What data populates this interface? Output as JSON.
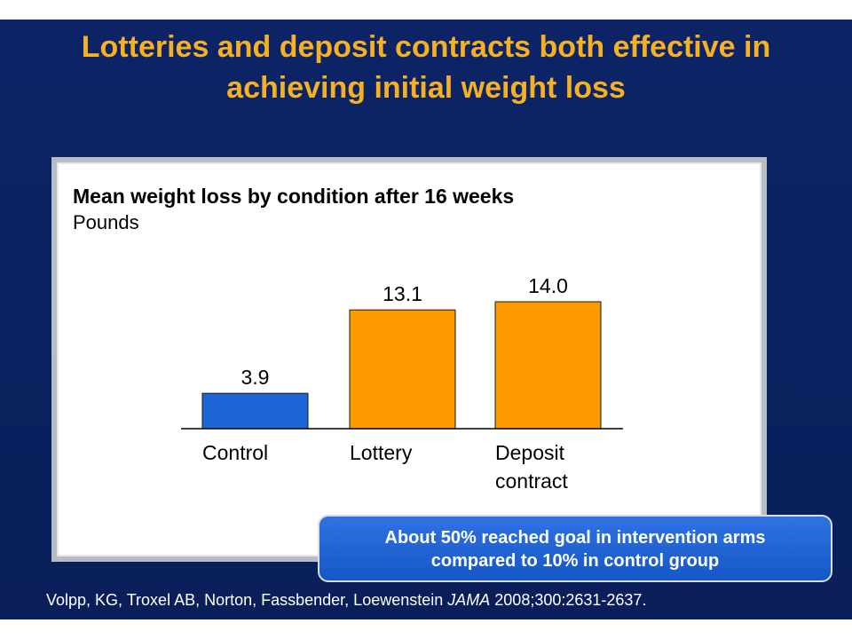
{
  "slide": {
    "title_line1": "Lotteries and deposit contracts both effective in",
    "title_line2": "achieving initial weight loss",
    "callout_line1": "About 50% reached goal in intervention arms",
    "callout_line2": "compared to 10% in control group",
    "citation_authors": "Volpp, KG, Troxel AB, Norton, Fassbender, Loewenstein ",
    "citation_journal": "JAMA",
    "citation_ref": " 2008;300:2631-2637.",
    "colors": {
      "background": "#0a1f5c",
      "title": "#f6b023",
      "callout": "#1e62d6"
    }
  },
  "chart_data": {
    "type": "bar",
    "title": "Mean weight loss by condition after 16 weeks",
    "subtitle": "Pounds",
    "categories": [
      [
        "Control"
      ],
      [
        "Lottery"
      ],
      [
        "Deposit",
        "contract"
      ]
    ],
    "values": [
      3.9,
      13.1,
      14.0
    ],
    "value_labels": [
      "3.9",
      "13.1",
      "14.0"
    ],
    "bar_colors": [
      "#1c66d6",
      "#ff9900",
      "#ff9900"
    ],
    "ylim": [
      0,
      14.0
    ],
    "grid": false,
    "legend": "none"
  }
}
